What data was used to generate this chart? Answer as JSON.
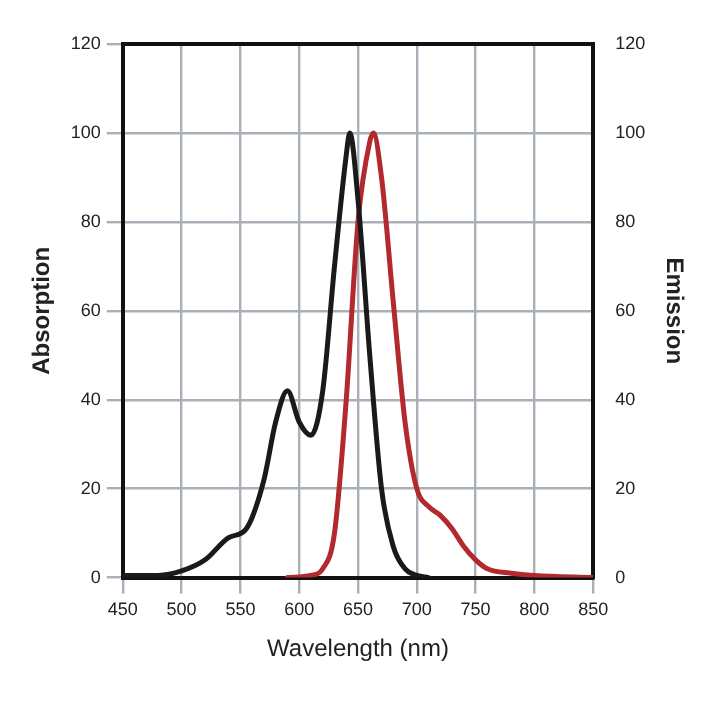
{
  "chart_data": {
    "type": "line",
    "xlabel": "Wavelength (nm)",
    "ylabel": "Absorption",
    "y2label": "Emission",
    "xlim": [
      450,
      850
    ],
    "xticks": [
      450,
      500,
      550,
      600,
      650,
      700,
      750,
      800,
      850
    ],
    "ylim": [
      0,
      120
    ],
    "yticks": [
      0,
      20,
      40,
      60,
      80,
      100,
      120
    ],
    "y2lim": [
      0,
      120
    ],
    "y2ticks": [
      0,
      20,
      40,
      60,
      80,
      100,
      120
    ],
    "grid": true,
    "legend": false,
    "marker": "none",
    "line_style": "solid",
    "series": [
      {
        "color": "#1a1a1a",
        "x": [
          450,
          480,
          500,
          520,
          540,
          555,
          570,
          580,
          590,
          600,
          610,
          620,
          630,
          640,
          643,
          650,
          660,
          670,
          680,
          690,
          700,
          710
        ],
        "values": [
          0.5,
          0.5,
          1.5,
          4,
          9,
          11,
          22,
          35,
          42,
          35,
          32,
          42,
          70,
          95,
          100,
          85,
          50,
          20,
          7,
          2,
          0.5,
          0
        ]
      },
      {
        "color": "#b22a2e",
        "axis": "y2",
        "x": [
          590,
          610,
          620,
          630,
          640,
          650,
          660,
          663,
          670,
          680,
          690,
          700,
          710,
          720,
          730,
          740,
          750,
          760,
          780,
          800,
          850
        ],
        "values": [
          0,
          0.5,
          2,
          10,
          40,
          80,
          98,
          100,
          90,
          62,
          35,
          20,
          16,
          14,
          11,
          7,
          4,
          2,
          1,
          0.5,
          0
        ]
      }
    ]
  }
}
